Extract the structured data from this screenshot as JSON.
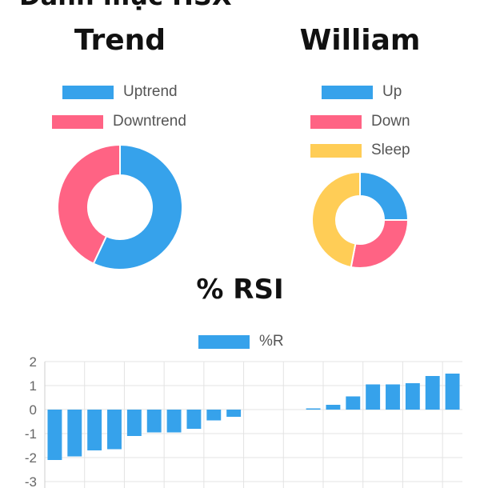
{
  "page": {
    "heading": "Danh mục HSX"
  },
  "trend": {
    "title": "Trend",
    "legend": [
      {
        "label": "Uptrend",
        "color": "#36a2eb"
      },
      {
        "label": "Downtrend",
        "color": "#ff6384"
      }
    ]
  },
  "william": {
    "title": "William",
    "legend": [
      {
        "label": "Up",
        "color": "#36a2eb"
      },
      {
        "label": "Down",
        "color": "#ff6384"
      },
      {
        "label": "Sleep",
        "color": "#ffcd56"
      }
    ]
  },
  "rsi": {
    "title": "% RSI",
    "legend": [
      {
        "label": "%R",
        "color": "#36a2eb"
      }
    ]
  },
  "chart_data": [
    {
      "type": "pie",
      "style": "doughnut",
      "title": "Trend",
      "labels": [
        "Uptrend",
        "Downtrend"
      ],
      "values": [
        57,
        43
      ],
      "colors": [
        "#36a2eb",
        "#ff6384"
      ]
    },
    {
      "type": "pie",
      "style": "doughnut",
      "title": "William",
      "labels": [
        "Up",
        "Down",
        "Sleep"
      ],
      "values": [
        25,
        28,
        47
      ],
      "colors": [
        "#36a2eb",
        "#ff6384",
        "#ffcd56"
      ]
    },
    {
      "type": "bar",
      "title": "% RSI",
      "series": [
        {
          "name": "%R",
          "color": "#36a2eb",
          "values": [
            -2.1,
            -1.95,
            -1.7,
            -1.65,
            -1.1,
            -0.95,
            -0.95,
            -0.8,
            -0.45,
            -0.3,
            0,
            0,
            0,
            0.05,
            0.2,
            0.55,
            1.05,
            1.05,
            1.1,
            1.4,
            1.5
          ]
        }
      ],
      "yticks": [
        2,
        1,
        0,
        -1,
        -2,
        -3
      ],
      "ylim": [
        -3,
        2
      ],
      "grid": true,
      "legend_position": "top"
    }
  ]
}
